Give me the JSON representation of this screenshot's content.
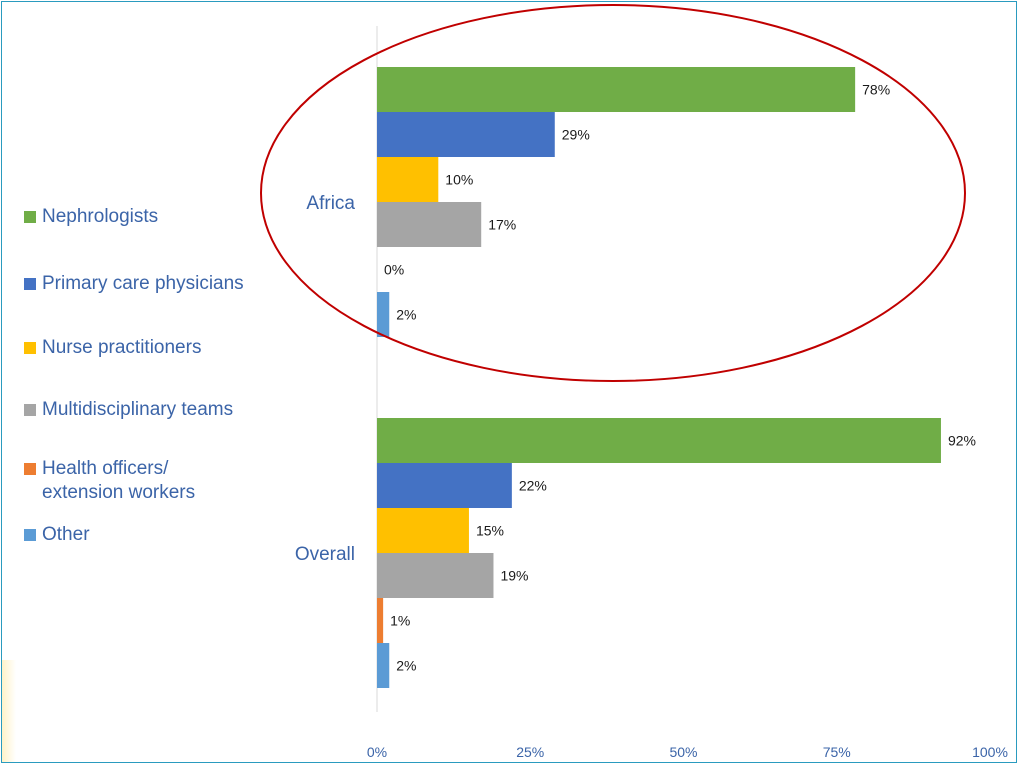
{
  "chart_data": {
    "type": "bar",
    "orientation": "horizontal",
    "categories": [
      "Africa",
      "Overall"
    ],
    "series": [
      {
        "name": "Nephrologists",
        "color": "#70ad47",
        "values": [
          78,
          92
        ]
      },
      {
        "name": "Primary care physicians",
        "color": "#4472c4",
        "values": [
          29,
          22
        ]
      },
      {
        "name": "Nurse practitioners",
        "color": "#ffc000",
        "values": [
          10,
          15
        ]
      },
      {
        "name": "Multidisciplinary teams",
        "color": "#a5a5a5",
        "values": [
          17,
          19
        ]
      },
      {
        "name": "Health officers/\nextension workers",
        "color": "#ed7d31",
        "values": [
          0,
          1
        ]
      },
      {
        "name": "Other",
        "color": "#5b9bd5",
        "values": [
          2,
          2
        ]
      }
    ],
    "value_labels": [
      [
        "78%",
        "29%",
        "10%",
        "17%",
        "0%",
        "2%"
      ],
      [
        "92%",
        "22%",
        "15%",
        "19%",
        "1%",
        "2%"
      ]
    ],
    "x_ticks": [
      0,
      25,
      50,
      75,
      100
    ],
    "x_tick_labels": [
      "0%",
      "25%",
      "50%",
      "75%",
      "100%"
    ],
    "xlim": [
      0,
      100
    ],
    "grid": false,
    "legend_position": "left",
    "highlight": {
      "category": "Africa",
      "shape": "ellipse",
      "color": "#c00000"
    }
  }
}
